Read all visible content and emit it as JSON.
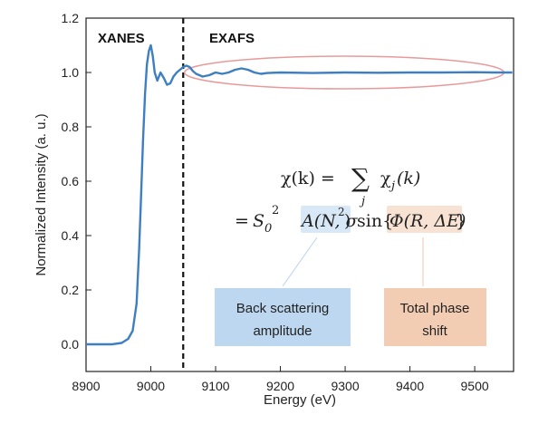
{
  "chart_data": {
    "type": "line",
    "xlabel": "Energy (eV)",
    "ylabel": "Normalized Intensity (a. u.)",
    "xlim": [
      8900,
      9560
    ],
    "ylim": [
      -0.1,
      1.2
    ],
    "xticks": [
      "8900",
      "9000",
      "9100",
      "9200",
      "9300",
      "9400",
      "9500"
    ],
    "yticks": [
      "0.0",
      "0.2",
      "0.4",
      "0.6",
      "0.8",
      "1.0",
      "1.2"
    ],
    "grid": false,
    "line_color": "#3d7fc1",
    "series": [
      {
        "x": [
          8900,
          8920,
          8940,
          8955,
          8965,
          8972,
          8978,
          8982,
          8985,
          8988,
          8991,
          8994,
          8997,
          9000,
          9003,
          9006,
          9010,
          9015,
          9020,
          9025,
          9030,
          9035,
          9040,
          9045,
          9050,
          9055,
          9060,
          9065,
          9070,
          9080,
          9090,
          9100,
          9110,
          9120,
          9130,
          9140,
          9150,
          9160,
          9170,
          9180,
          9200,
          9250,
          9300,
          9350,
          9400,
          9450,
          9500,
          9530,
          9558
        ],
        "y": [
          0.0,
          0.0,
          0.0,
          0.005,
          0.02,
          0.05,
          0.15,
          0.35,
          0.55,
          0.75,
          0.92,
          1.03,
          1.08,
          1.1,
          1.06,
          1.0,
          0.97,
          1.0,
          0.98,
          0.955,
          0.96,
          0.985,
          1.0,
          1.01,
          1.02,
          1.025,
          1.02,
          1.005,
          0.995,
          0.985,
          0.99,
          1.0,
          0.995,
          1.0,
          1.01,
          1.015,
          1.01,
          1.0,
          0.995,
          0.998,
          1.0,
          0.998,
          1.0,
          0.999,
          1.0,
          1.0,
          1.001,
          1.0,
          1.0
        ]
      }
    ],
    "divider_x": 9050,
    "ellipse": {
      "x_range": [
        9052,
        9545
      ],
      "y_center": 1.0,
      "y_halfheight": 0.06,
      "color": "#e89a9a"
    },
    "annotations": {
      "xanes": "XANES",
      "exafs": "EXAFS"
    }
  },
  "equation": {
    "line1_lhs": "χ(k) = ",
    "sum_symbol": "∑",
    "sum_index": "j",
    "line1_rhs": "χ",
    "line1_rhs_sub": "j",
    "line1_rhs_arg": "(k)",
    "line2_eq": "=",
    "s0": "S",
    "s0_sub": "0",
    "s0_sup": "2",
    "amp": "A(N, σ",
    "amp_sup": "2",
    "amp_close": ")",
    "sin": "sin{",
    "phase": "Φ(R, ΔE)",
    "close": "}"
  },
  "boxes": {
    "amplitude_line1": "Back scattering",
    "amplitude_line2": "amplitude",
    "amplitude_color": "#bcd7ef",
    "phase_line1": "Total phase",
    "phase_line2": "shift",
    "phase_color": "#f2cdb4",
    "amp_highlight_color": "#d9e8f6",
    "phase_highlight_color": "#f8e2d3"
  }
}
